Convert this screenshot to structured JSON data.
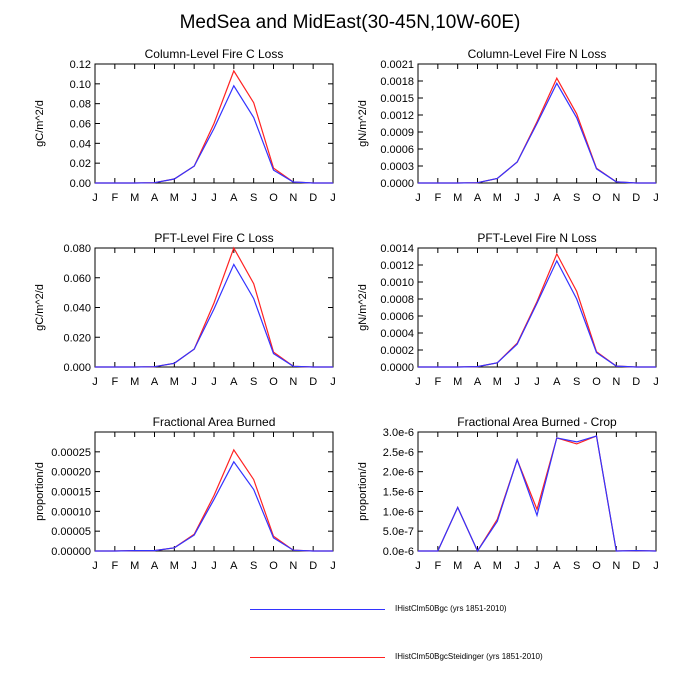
{
  "figure": {
    "title": "MedSea and MidEast(30-45N,10W-60E)"
  },
  "colors": {
    "series_1": "#3333ff",
    "series_2": "#ff2222"
  },
  "legend": [
    {
      "label": "IHistClm50Bgc (yrs 1851-2010)",
      "color": "#3333ff"
    },
    {
      "label": "IHistClm50BgcSteidinger (yrs 1851-2010)",
      "color": "#ff2222"
    }
  ],
  "chart_data": [
    {
      "type": "line",
      "title": "Column-Level Fire C Loss",
      "ylabel": "gC/m^2/d",
      "xlabel": "",
      "categories": [
        "J",
        "F",
        "M",
        "A",
        "M",
        "J",
        "J",
        "A",
        "S",
        "O",
        "N",
        "D",
        "J"
      ],
      "ylim": [
        0,
        0.12
      ],
      "yticks": [
        "0.00",
        "0.02",
        "0.04",
        "0.06",
        "0.08",
        "0.10",
        "0.12"
      ],
      "series": [
        {
          "name": "IHistClm50Bgc (yrs 1851-2010)",
          "values": [
            0,
            0,
            0,
            0.0003,
            0.004,
            0.017,
            0.055,
            0.098,
            0.066,
            0.013,
            0.001,
            0,
            0
          ]
        },
        {
          "name": "IHistClm50BgcSteidinger (yrs 1851-2010)",
          "values": [
            0,
            0,
            0,
            0.0003,
            0.004,
            0.017,
            0.06,
            0.113,
            0.081,
            0.015,
            0.001,
            0,
            0
          ]
        }
      ]
    },
    {
      "type": "line",
      "title": "Column-Level Fire N Loss",
      "ylabel": "gN/m^2/d",
      "xlabel": "",
      "categories": [
        "J",
        "F",
        "M",
        "A",
        "M",
        "J",
        "J",
        "A",
        "S",
        "O",
        "N",
        "D",
        "J"
      ],
      "ylim": [
        0,
        0.0021
      ],
      "yticks": [
        "0.0000",
        "0.0003",
        "0.0006",
        "0.0009",
        "0.0012",
        "0.0015",
        "0.0018",
        "0.0021"
      ],
      "series": [
        {
          "name": "IHistClm50Bgc (yrs 1851-2010)",
          "values": [
            0,
            0,
            0,
            5e-06,
            8e-05,
            0.00037,
            0.00105,
            0.00176,
            0.00115,
            0.00025,
            2e-05,
            0,
            0
          ]
        },
        {
          "name": "IHistClm50BgcSteidinger (yrs 1851-2010)",
          "values": [
            0,
            0,
            0,
            5e-06,
            8e-05,
            0.00037,
            0.00108,
            0.00185,
            0.00122,
            0.00026,
            2e-05,
            0,
            0
          ]
        }
      ]
    },
    {
      "type": "line",
      "title": "PFT-Level Fire C Loss",
      "ylabel": "gC/m^2/d",
      "xlabel": "",
      "categories": [
        "J",
        "F",
        "M",
        "A",
        "M",
        "J",
        "J",
        "A",
        "S",
        "O",
        "N",
        "D",
        "J"
      ],
      "ylim": [
        0,
        0.08
      ],
      "yticks": [
        "0.000",
        "0.020",
        "0.040",
        "0.060",
        "0.080"
      ],
      "series": [
        {
          "name": "IHistClm50Bgc (yrs 1851-2010)",
          "values": [
            0,
            0,
            0,
            0.0002,
            0.0025,
            0.012,
            0.039,
            0.069,
            0.046,
            0.009,
            0.0005,
            0,
            0
          ]
        },
        {
          "name": "IHistClm50BgcSteidinger (yrs 1851-2010)",
          "values": [
            0,
            0,
            0,
            0.0002,
            0.0025,
            0.012,
            0.043,
            0.08,
            0.056,
            0.01,
            0.0005,
            0,
            0
          ]
        }
      ]
    },
    {
      "type": "line",
      "title": "PFT-Level Fire N Loss",
      "ylabel": "gN/m^2/d",
      "xlabel": "",
      "categories": [
        "J",
        "F",
        "M",
        "A",
        "M",
        "J",
        "J",
        "A",
        "S",
        "O",
        "N",
        "D",
        "J"
      ],
      "ylim": [
        0,
        0.0014
      ],
      "yticks": [
        "0.0000",
        "0.0002",
        "0.0004",
        "0.0006",
        "0.0008",
        "0.0010",
        "0.0012",
        "0.0014"
      ],
      "series": [
        {
          "name": "IHistClm50Bgc (yrs 1851-2010)",
          "values": [
            0,
            0,
            0,
            5e-06,
            5e-05,
            0.00027,
            0.00075,
            0.00125,
            0.0008,
            0.00017,
            1e-05,
            0,
            0
          ]
        },
        {
          "name": "IHistClm50BgcSteidinger (yrs 1851-2010)",
          "values": [
            0,
            0,
            0,
            5e-06,
            5e-05,
            0.00028,
            0.00077,
            0.00133,
            0.00089,
            0.00018,
            1e-05,
            0,
            0
          ]
        }
      ]
    },
    {
      "type": "line",
      "title": "Fractional Area Burned",
      "ylabel": "proportion/d",
      "xlabel": "",
      "categories": [
        "J",
        "F",
        "M",
        "A",
        "M",
        "J",
        "J",
        "A",
        "S",
        "O",
        "N",
        "D",
        "J"
      ],
      "ylim": [
        0,
        0.0003
      ],
      "yticks": [
        "0.00000",
        "0.00005",
        "0.00010",
        "0.00015",
        "0.00020",
        "0.00025"
      ],
      "series": [
        {
          "name": "IHistClm50Bgc (yrs 1851-2010)",
          "values": [
            0,
            0,
            1e-06,
            1e-06,
            8e-06,
            4e-05,
            0.00013,
            0.000225,
            0.000155,
            3.3e-05,
            2e-06,
            0,
            0
          ]
        },
        {
          "name": "IHistClm50BgcSteidinger (yrs 1851-2010)",
          "values": [
            0,
            0,
            1e-06,
            1e-06,
            8e-06,
            4.2e-05,
            0.00014,
            0.000255,
            0.00018,
            3.7e-05,
            2e-06,
            0,
            0
          ]
        }
      ]
    },
    {
      "type": "line",
      "title": "Fractional Area Burned - Crop",
      "ylabel": "proportion/d",
      "xlabel": "",
      "categories": [
        "J",
        "F",
        "M",
        "A",
        "M",
        "J",
        "J",
        "A",
        "S",
        "O",
        "N",
        "D",
        "J"
      ],
      "ylim": [
        0,
        3e-06
      ],
      "yticks": [
        "0.0e-6",
        "5.0e-7",
        "1.0e-6",
        "1.5e-6",
        "2.0e-6",
        "2.5e-6",
        "3.0e-6"
      ],
      "series": [
        {
          "name": "IHistClm50Bgc (yrs 1851-2010)",
          "values": [
            0,
            0,
            1.1e-06,
            0,
            7.5e-07,
            2.3e-06,
            9e-07,
            2.85e-06,
            2.75e-06,
            2.9e-06,
            0,
            1e-08,
            0
          ]
        },
        {
          "name": "IHistClm50BgcSteidinger (yrs 1851-2010)",
          "values": [
            0,
            0,
            1.1e-06,
            0,
            8e-07,
            2.3e-06,
            1.05e-06,
            2.85e-06,
            2.7e-06,
            2.9e-06,
            0,
            1e-08,
            0
          ]
        }
      ]
    }
  ]
}
